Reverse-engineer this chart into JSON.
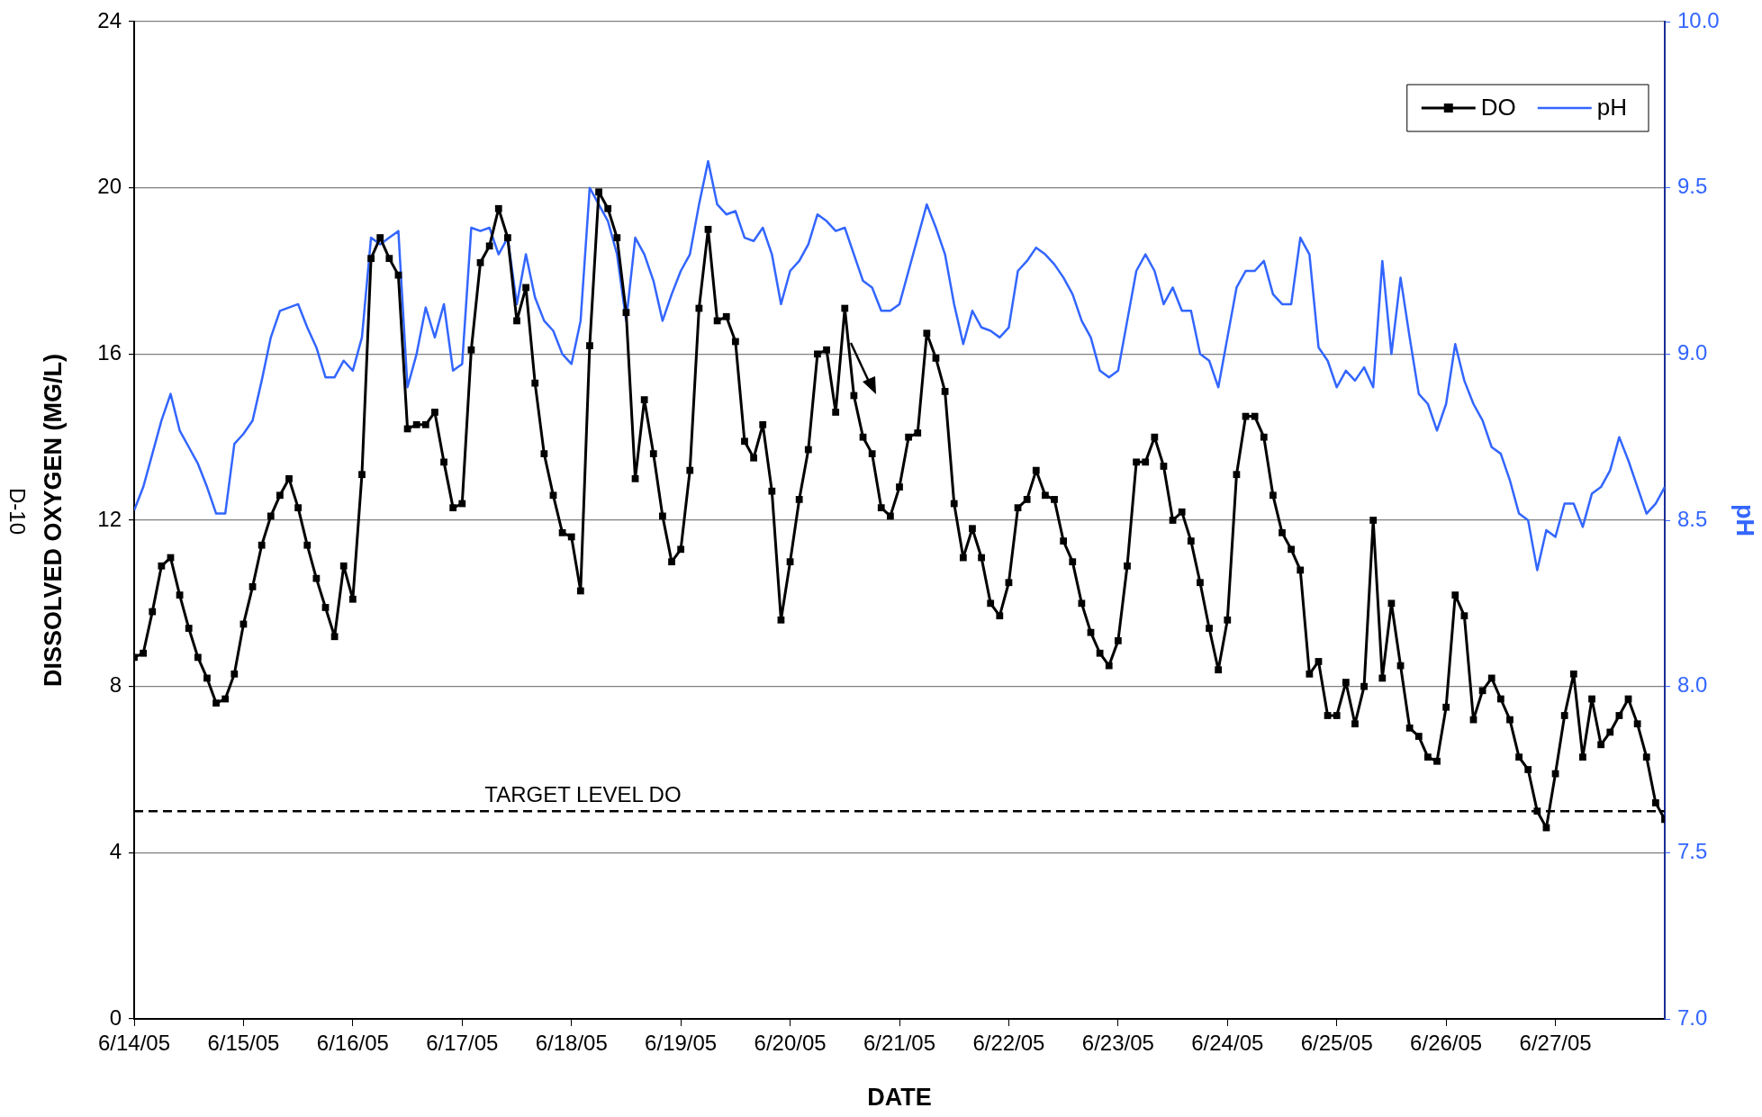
{
  "chart_data": {
    "type": "line",
    "xlabel": "DATE",
    "ylabel": "DISSOLVED OXYGEN (MG/L)",
    "y2label": "pH",
    "annotations": [
      "D-10"
    ],
    "x": [
      "--06-14T00:00",
      "--06-14T02:00",
      "--06-14T04:00",
      "--06-14T06:00",
      "--06-14T08:00",
      "--06-14T10:00",
      "--06-14T12:00",
      "--06-14T14:00",
      "--06-14T16:00",
      "--06-14T18:00",
      "--06-14T20:00",
      "--06-14T22:00",
      "--06-15T00:00",
      "--06-15T02:00",
      "--06-15T04:00",
      "--06-15T06:00",
      "--06-15T08:00",
      "--06-15T10:00",
      "--06-15T12:00",
      "--06-15T14:00",
      "--06-15T16:00",
      "--06-15T18:00",
      "--06-15T20:00",
      "--06-15T22:00",
      "--06-16T00:00",
      "--06-16T02:00",
      "--06-16T04:00",
      "--06-16T06:00",
      "--06-16T08:00",
      "--06-16T10:00",
      "--06-16T12:00",
      "--06-16T14:00",
      "--06-16T16:00",
      "--06-16T18:00",
      "--06-16T20:00",
      "--06-16T22:00",
      "--06-17T00:00",
      "--06-17T02:00",
      "--06-17T04:00",
      "--06-17T06:00",
      "--06-17T08:00",
      "--06-17T10:00",
      "--06-17T12:00",
      "--06-17T14:00",
      "--06-17T16:00",
      "--06-17T18:00",
      "--06-17T20:00",
      "--06-17T22:00",
      "--06-18T00:00",
      "--06-18T02:00",
      "--06-18T04:00",
      "--06-18T06:00",
      "--06-18T08:00",
      "--06-18T10:00",
      "--06-18T12:00",
      "--06-18T14:00",
      "--06-18T16:00",
      "--06-18T18:00",
      "--06-18T20:00",
      "--06-18T22:00",
      "--06-19T00:00",
      "--06-19T02:00",
      "--06-19T04:00",
      "--06-19T06:00",
      "--06-19T08:00",
      "--06-19T10:00",
      "--06-19T12:00",
      "--06-19T14:00",
      "--06-19T16:00",
      "--06-19T18:00",
      "--06-19T20:00",
      "--06-19T22:00",
      "--06-20T00:00",
      "--06-20T02:00",
      "--06-20T04:00",
      "--06-20T06:00",
      "--06-20T08:00",
      "--06-20T10:00",
      "--06-20T12:00",
      "--06-20T14:00",
      "--06-20T16:00",
      "--06-20T18:00",
      "--06-20T20:00",
      "--06-20T22:00",
      "--06-21T00:00",
      "--06-21T02:00",
      "--06-21T04:00",
      "--06-21T06:00",
      "--06-21T08:00",
      "--06-21T10:00",
      "--06-21T12:00",
      "--06-21T14:00",
      "--06-21T16:00",
      "--06-21T18:00",
      "--06-21T20:00",
      "--06-21T22:00",
      "--06-22T00:00",
      "--06-22T02:00",
      "--06-22T04:00",
      "--06-22T06:00",
      "--06-22T08:00",
      "--06-22T10:00",
      "--06-22T12:00",
      "--06-22T14:00",
      "--06-22T16:00",
      "--06-22T18:00",
      "--06-22T20:00",
      "--06-22T22:00",
      "--06-23T00:00",
      "--06-23T02:00",
      "--06-23T04:00",
      "--06-23T06:00",
      "--06-23T08:00",
      "--06-23T10:00",
      "--06-23T12:00",
      "--06-23T14:00",
      "--06-23T16:00",
      "--06-23T18:00",
      "--06-23T20:00",
      "--06-23T22:00",
      "--06-24T00:00",
      "--06-24T02:00",
      "--06-24T04:00",
      "--06-24T06:00",
      "--06-24T08:00",
      "--06-24T10:00",
      "--06-24T12:00",
      "--06-24T14:00",
      "--06-24T16:00",
      "--06-24T18:00",
      "--06-24T20:00",
      "--06-24T22:00",
      "--06-25T00:00",
      "--06-25T02:00",
      "--06-25T04:00",
      "--06-25T06:00",
      "--06-25T08:00",
      "--06-25T10:00",
      "--06-25T12:00",
      "--06-25T14:00",
      "--06-25T16:00",
      "--06-25T18:00",
      "--06-25T20:00",
      "--06-25T22:00",
      "--06-26T00:00",
      "--06-26T02:00",
      "--06-26T04:00",
      "--06-26T06:00",
      "--06-26T08:00",
      "--06-26T10:00",
      "--06-26T12:00",
      "--06-26T14:00",
      "--06-26T16:00",
      "--06-26T18:00",
      "--06-26T20:00",
      "--06-26T22:00",
      "--06-27T00:00",
      "--06-27T02:00",
      "--06-27T04:00",
      "--06-27T06:00",
      "--06-27T08:00",
      "--06-27T10:00",
      "--06-27T12:00",
      "--06-27T14:00",
      "--06-27T16:00",
      "--06-27T18:00",
      "--06-27T20:00",
      "--06-27T22:00",
      "--06-28T00:00"
    ],
    "series": [
      {
        "name": "DO",
        "color": "#000000",
        "marker": "square",
        "values": [
          8.7,
          8.8,
          9.8,
          10.9,
          11.1,
          10.2,
          9.4,
          8.7,
          8.2,
          7.6,
          7.7,
          8.3,
          9.5,
          10.4,
          11.4,
          12.1,
          12.6,
          13.0,
          12.3,
          11.4,
          10.6,
          9.9,
          9.2,
          10.9,
          10.1,
          13.1,
          18.3,
          18.8,
          18.3,
          17.9,
          14.2,
          14.3,
          14.3,
          14.6,
          13.4,
          12.3,
          12.4,
          16.1,
          18.2,
          18.6,
          19.5,
          18.8,
          16.8,
          17.6,
          15.3,
          13.6,
          12.6,
          11.7,
          11.6,
          10.3,
          16.2,
          19.9,
          19.5,
          18.8,
          17.0,
          13.0,
          14.9,
          13.6,
          12.1,
          11.0,
          11.3,
          13.2,
          17.1,
          19.0,
          16.8,
          16.9,
          16.3,
          13.9,
          13.5,
          14.3,
          12.7,
          9.6,
          11.0,
          12.5,
          13.7,
          16.0,
          16.1,
          14.6,
          17.1,
          15.0,
          14.0,
          13.6,
          12.3,
          12.1,
          12.8,
          14.0,
          14.1,
          16.5,
          15.9,
          15.1,
          12.4,
          11.1,
          11.8,
          11.1,
          10.0,
          9.7,
          10.5,
          12.3,
          12.5,
          13.2,
          12.6,
          12.5,
          11.5,
          11.0,
          10.0,
          9.3,
          8.8,
          8.5,
          9.1,
          10.9,
          13.4,
          13.4,
          14.0,
          13.3,
          12.0,
          12.2,
          11.5,
          10.5,
          9.4,
          8.4,
          9.6,
          13.1,
          14.5,
          14.5,
          14.0,
          12.6,
          11.7,
          11.3,
          10.8,
          8.3,
          8.6,
          7.3,
          7.3,
          8.1,
          7.1,
          8.0,
          12.0,
          8.2,
          10.0,
          8.5,
          7.0,
          6.8,
          6.3,
          6.2,
          7.5,
          10.2,
          9.7,
          7.2,
          7.9,
          8.2,
          7.7,
          7.2,
          6.3,
          6.0,
          5.0,
          4.6,
          5.9,
          7.3,
          8.3,
          6.3,
          7.7,
          6.6,
          6.9,
          7.3,
          7.7,
          7.1,
          6.3,
          5.2,
          4.8
        ]
      },
      {
        "name": "pH",
        "color": "#3366ff",
        "marker": "none",
        "axis": "y2",
        "values": [
          8.53,
          8.6,
          8.7,
          8.8,
          8.88,
          8.77,
          8.72,
          8.67,
          8.6,
          8.52,
          8.52,
          8.73,
          8.76,
          8.8,
          8.92,
          9.05,
          9.13,
          9.14,
          9.15,
          9.08,
          9.02,
          8.93,
          8.93,
          8.98,
          8.95,
          9.05,
          9.35,
          9.33,
          9.35,
          9.37,
          8.9,
          9.0,
          9.14,
          9.05,
          9.15,
          8.95,
          8.97,
          9.38,
          9.37,
          9.38,
          9.3,
          9.35,
          9.15,
          9.3,
          9.17,
          9.1,
          9.07,
          9.0,
          8.97,
          9.1,
          9.5,
          9.45,
          9.4,
          9.3,
          9.1,
          9.35,
          9.3,
          9.22,
          9.1,
          9.18,
          9.25,
          9.3,
          9.45,
          9.58,
          9.45,
          9.42,
          9.43,
          9.35,
          9.34,
          9.38,
          9.3,
          9.15,
          9.25,
          9.28,
          9.33,
          9.42,
          9.4,
          9.37,
          9.38,
          9.3,
          9.22,
          9.2,
          9.13,
          9.13,
          9.15,
          9.25,
          9.35,
          9.45,
          9.38,
          9.3,
          9.15,
          9.03,
          9.13,
          9.08,
          9.07,
          9.05,
          9.08,
          9.25,
          9.28,
          9.32,
          9.3,
          9.27,
          9.23,
          9.18,
          9.1,
          9.05,
          8.95,
          8.93,
          8.95,
          9.1,
          9.25,
          9.3,
          9.25,
          9.15,
          9.2,
          9.13,
          9.13,
          9.0,
          8.98,
          8.9,
          9.05,
          9.2,
          9.25,
          9.25,
          9.28,
          9.18,
          9.15,
          9.15,
          9.35,
          9.3,
          9.02,
          8.98,
          8.9,
          8.95,
          8.92,
          8.96,
          8.9,
          9.28,
          9.0,
          9.23,
          9.05,
          8.88,
          8.85,
          8.77,
          8.85,
          9.03,
          8.92,
          8.85,
          8.8,
          8.72,
          8.7,
          8.62,
          8.52,
          8.5,
          8.35,
          8.47,
          8.45,
          8.55,
          8.55,
          8.48,
          8.58,
          8.6,
          8.65,
          8.75,
          8.68,
          8.6,
          8.52,
          8.55,
          8.6
        ]
      }
    ],
    "xlim": [
      "--06-14",
      "--06-28"
    ],
    "xticks": [
      {
        "value": "--06-14",
        "label": "6/14/05"
      },
      {
        "value": "--06-15",
        "label": "6/15/05"
      },
      {
        "value": "--06-16",
        "label": "6/16/05"
      },
      {
        "value": "--06-17",
        "label": "6/17/05"
      },
      {
        "value": "--06-18",
        "label": "6/18/05"
      },
      {
        "value": "--06-19",
        "label": "6/19/05"
      },
      {
        "value": "--06-20",
        "label": "6/20/05"
      },
      {
        "value": "--06-21",
        "label": "6/21/05"
      },
      {
        "value": "--06-22",
        "label": "6/22/05"
      },
      {
        "value": "--06-23",
        "label": "6/23/05"
      },
      {
        "value": "--06-24",
        "label": "6/24/05"
      },
      {
        "value": "--06-25",
        "label": "6/25/05"
      },
      {
        "value": "--06-26",
        "label": "6/26/05"
      },
      {
        "value": "--06-27",
        "label": "6/27/05"
      }
    ],
    "ylim": [
      0,
      24
    ],
    "yticks": [
      0,
      4,
      8,
      12,
      16,
      20,
      24
    ],
    "y2lim": [
      7,
      10
    ],
    "y2ticks": [
      {
        "value": 7,
        "label": "7.0"
      },
      {
        "value": 7.5,
        "label": "7.5"
      },
      {
        "value": 8,
        "label": "8.0"
      },
      {
        "value": 8.5,
        "label": "8.5"
      },
      {
        "value": 9,
        "label": "9.0"
      },
      {
        "value": 9.5,
        "label": "9.5"
      },
      {
        "value": 10,
        "label": "10.0"
      }
    ],
    "ref_lines": [
      {
        "axis": "y",
        "value": 5,
        "label": "TARGET LEVEL DO",
        "color": "#000000",
        "line_style": "dashed"
      }
    ],
    "grid": "y",
    "legend": "top right",
    "line_style": "solid"
  }
}
